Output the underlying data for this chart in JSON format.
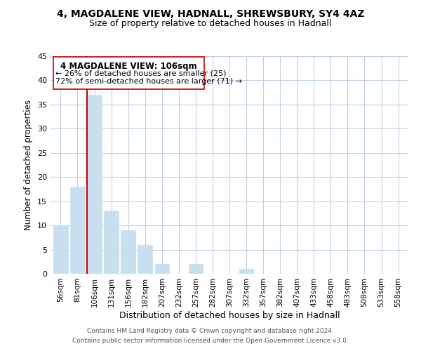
{
  "title_line1": "4, MAGDALENE VIEW, HADNALL, SHREWSBURY, SY4 4AZ",
  "title_line2": "Size of property relative to detached houses in Hadnall",
  "xlabel": "Distribution of detached houses by size in Hadnall",
  "ylabel": "Number of detached properties",
  "bar_labels": [
    "56sqm",
    "81sqm",
    "106sqm",
    "131sqm",
    "156sqm",
    "182sqm",
    "207sqm",
    "232sqm",
    "257sqm",
    "282sqm",
    "307sqm",
    "332sqm",
    "357sqm",
    "382sqm",
    "407sqm",
    "433sqm",
    "458sqm",
    "483sqm",
    "508sqm",
    "533sqm",
    "558sqm"
  ],
  "bar_values": [
    10,
    18,
    37,
    13,
    9,
    6,
    2,
    0,
    2,
    0,
    0,
    1,
    0,
    0,
    0,
    0,
    0,
    0,
    0,
    0,
    0
  ],
  "bar_color": "#c8dff0",
  "highlight_bar_index": 2,
  "highlight_line_color": "#cc0000",
  "ylim": [
    0,
    45
  ],
  "yticks": [
    0,
    5,
    10,
    15,
    20,
    25,
    30,
    35,
    40,
    45
  ],
  "annotation_title": "4 MAGDALENE VIEW: 106sqm",
  "annotation_line1": "← 26% of detached houses are smaller (25)",
  "annotation_line2": "72% of semi-detached houses are larger (71) →",
  "footer_line1": "Contains HM Land Registry data © Crown copyright and database right 2024.",
  "footer_line2": "Contains public sector information licensed under the Open Government Licence v3.0.",
  "background_color": "#ffffff",
  "grid_color": "#c0d0e0"
}
